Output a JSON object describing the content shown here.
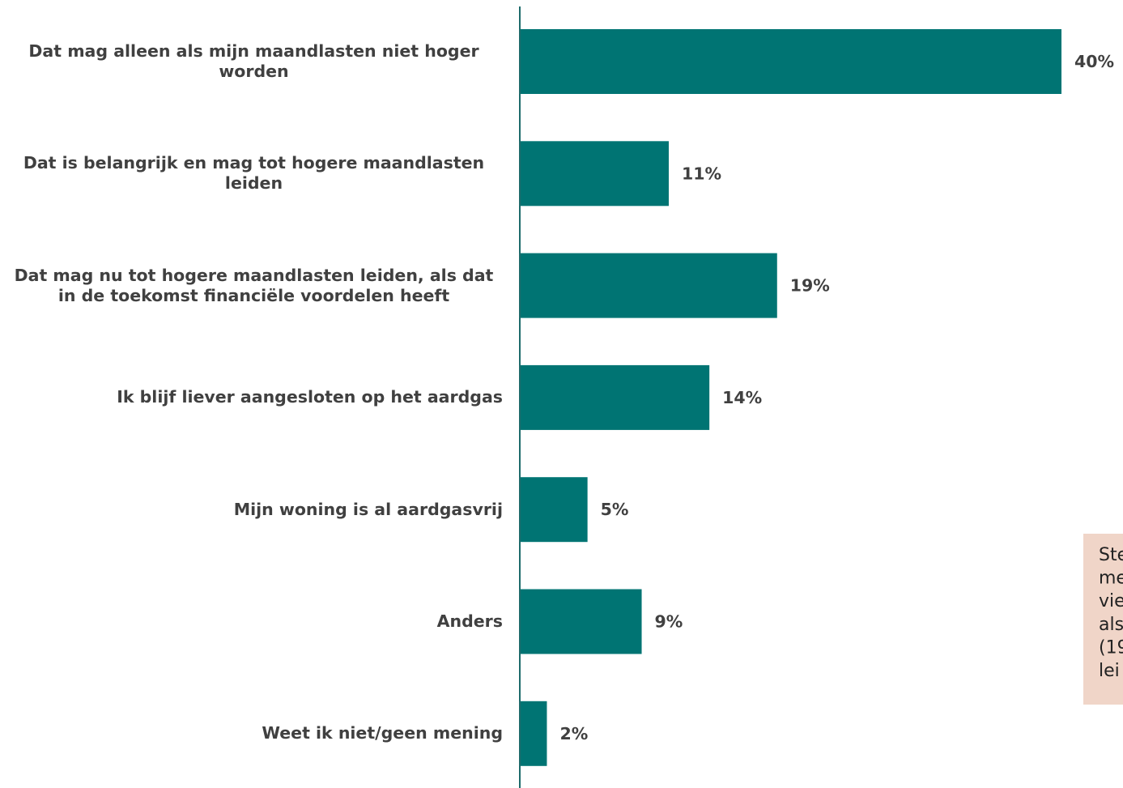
{
  "chart_data": {
    "type": "bar",
    "orientation": "horizontal",
    "categories": [
      "Dat mag alleen als mijn maandlasten niet hoger worden",
      "Dat is belangrijk en mag tot hogere maandlasten leiden",
      "Dat mag nu tot hogere maandlasten leiden, als dat in de toekomst financiële voordelen heeft",
      "Ik blijf liever aangesloten op het aardgas",
      "Mijn woning is al aardgasvrij",
      "Anders",
      "Weet ik niet/geen mening"
    ],
    "values": [
      40,
      11,
      19,
      14,
      5,
      9,
      2
    ],
    "value_labels": [
      "40%",
      "11%",
      "19%",
      "14%",
      "5%",
      "9%",
      "2%"
    ],
    "color": "#007473",
    "xlim": [
      0,
      40
    ],
    "annotation_lines": [
      "Ste",
      "me",
      "vie",
      "als",
      "(19",
      "lei"
    ]
  }
}
